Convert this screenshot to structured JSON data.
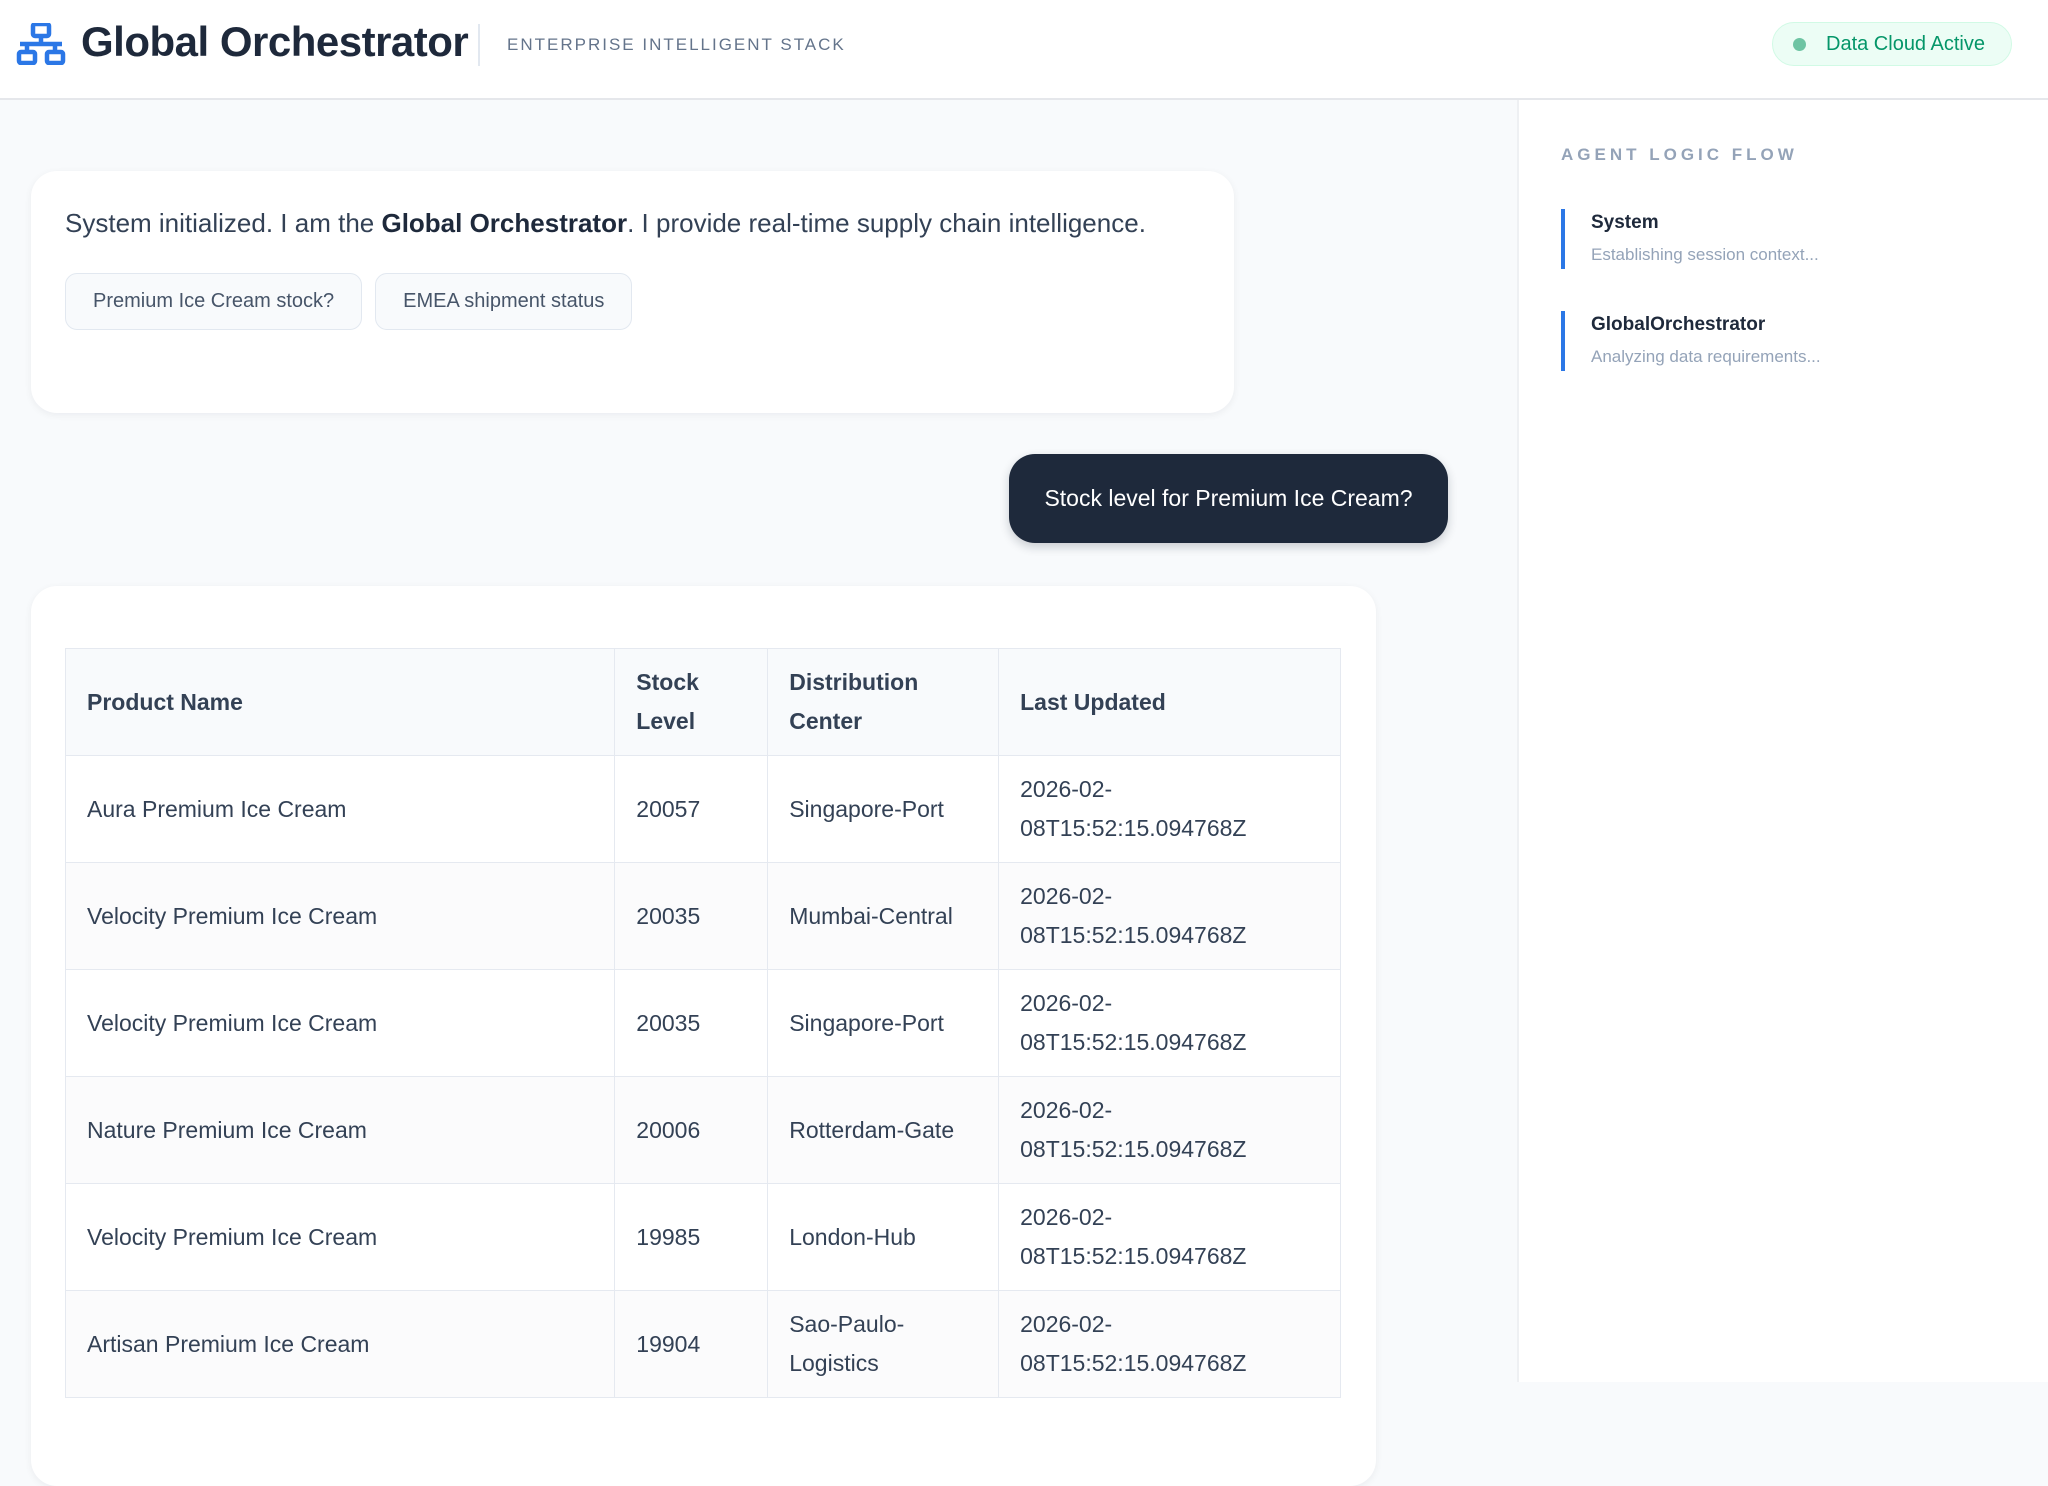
{
  "header": {
    "title": "Global Orchestrator",
    "subtitle": "ENTERPRISE INTELLIGENT STACK",
    "status": "Data Cloud Active",
    "logo_icon": "network-icon",
    "accent": "#2b77e6",
    "status_color": "#059669"
  },
  "sidebar": {
    "heading": "AGENT LOGIC FLOW",
    "steps": [
      {
        "title": "System",
        "detail": "Establishing session context..."
      },
      {
        "title": "GlobalOrchestrator",
        "detail": "Analyzing data requirements..."
      }
    ]
  },
  "chat": {
    "intro": {
      "pre": "System initialized. I am the ",
      "bold": "Global Orchestrator",
      "post": ". I provide real-time supply chain intelligence."
    },
    "suggestions": [
      "Premium Ice Cream stock?",
      "EMEA shipment status"
    ],
    "user_message": "Stock level for Premium Ice Cream?"
  },
  "table": {
    "headers": [
      "Product Name",
      "Stock Level",
      "Distribution Center",
      "Last Updated"
    ],
    "rows": [
      [
        "Aura Premium Ice Cream",
        "20057",
        "Singapore-Port",
        "2026-02-08T15:52:15.094768Z"
      ],
      [
        "Velocity Premium Ice Cream",
        "20035",
        "Mumbai-Central",
        "2026-02-08T15:52:15.094768Z"
      ],
      [
        "Velocity Premium Ice Cream",
        "20035",
        "Singapore-Port",
        "2026-02-08T15:52:15.094768Z"
      ],
      [
        "Nature Premium Ice Cream",
        "20006",
        "Rotterdam-Gate",
        "2026-02-08T15:52:15.094768Z"
      ],
      [
        "Velocity Premium Ice Cream",
        "19985",
        "London-Hub",
        "2026-02-08T15:52:15.094768Z"
      ],
      [
        "Artisan Premium Ice Cream",
        "19904",
        "Sao-Paulo-Logistics",
        "2026-02-08T15:52:15.094768Z"
      ]
    ]
  }
}
